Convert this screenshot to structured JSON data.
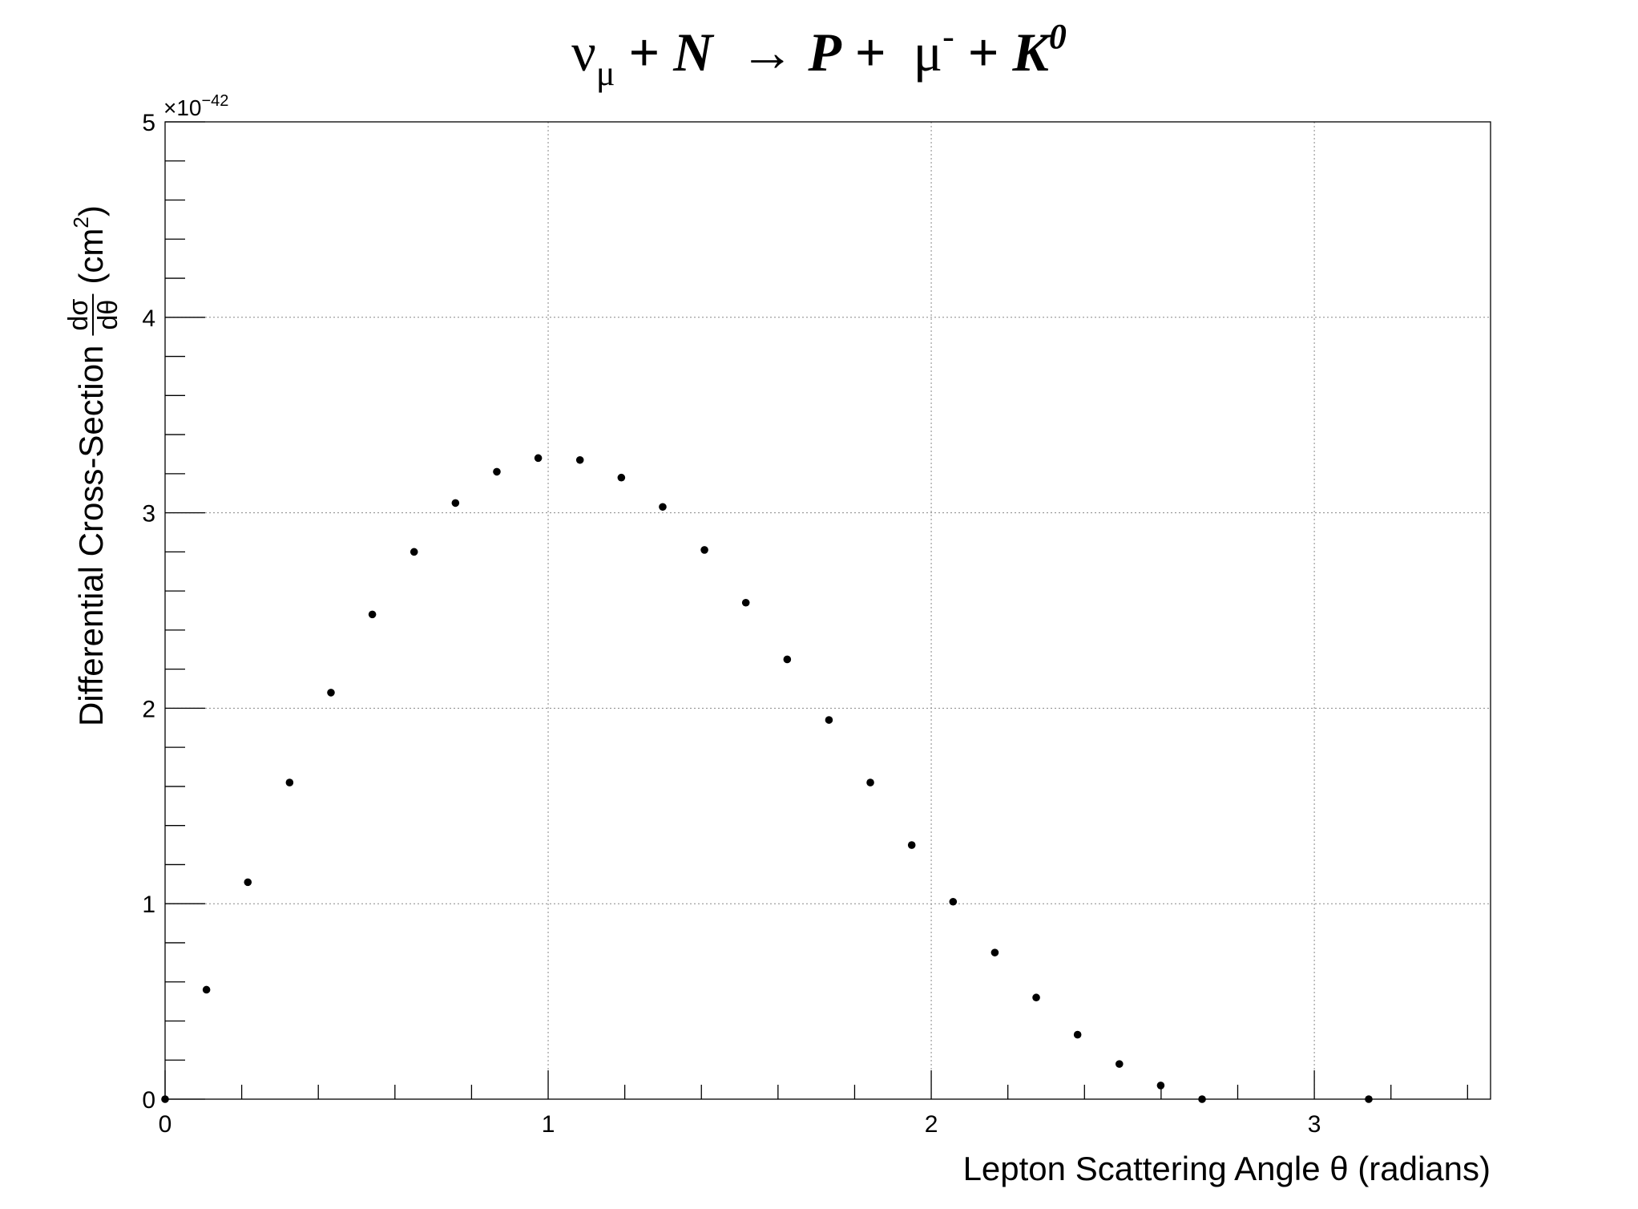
{
  "chart_data": {
    "type": "scatter",
    "title": {
      "parts": [
        {
          "text": "ν",
          "style": "normal"
        },
        {
          "text": "μ",
          "style": "sub"
        },
        {
          "text": " + ",
          "style": "bold"
        },
        {
          "text": "N",
          "style": "bolditalic"
        },
        {
          "text": "  → ",
          "style": "normal"
        },
        {
          "text": "P",
          "style": "bolditalic"
        },
        {
          "text": " +  ",
          "style": "bold"
        },
        {
          "text": "μ",
          "style": "normal"
        },
        {
          "text": "-",
          "style": "sup"
        },
        {
          "text": " + ",
          "style": "bold"
        },
        {
          "text": "K",
          "style": "bolditalic"
        },
        {
          "text": "0",
          "style": "supitalic"
        }
      ]
    },
    "xlabel": "Lepton Scattering Angle θ (radians)",
    "ylabel": {
      "prefix": "Differential Cross-Section",
      "frac_num": "dσ",
      "frac_den": "dθ",
      "unit_open": "(cm",
      "unit_exp": "2",
      "unit_close": ")"
    },
    "y_multiplier": {
      "base": "×10",
      "exponent": "−42"
    },
    "xlim": [
      0,
      3.46
    ],
    "ylim": [
      0,
      5
    ],
    "x_ticks": [
      0,
      1,
      2,
      3
    ],
    "y_ticks": [
      0,
      1,
      2,
      3,
      4,
      5
    ],
    "grid": true,
    "series": [
      {
        "marker": "dot",
        "color": "#000000",
        "points": [
          [
            0.0,
            0.0
          ],
          [
            0.108,
            0.56
          ],
          [
            0.216,
            1.11
          ],
          [
            0.325,
            1.62
          ],
          [
            0.433,
            2.08
          ],
          [
            0.541,
            2.48
          ],
          [
            0.65,
            2.8
          ],
          [
            0.758,
            3.05
          ],
          [
            0.866,
            3.21
          ],
          [
            0.974,
            3.28
          ],
          [
            1.083,
            3.27
          ],
          [
            1.191,
            3.18
          ],
          [
            1.299,
            3.03
          ],
          [
            1.408,
            2.81
          ],
          [
            1.516,
            2.54
          ],
          [
            1.624,
            2.25
          ],
          [
            1.733,
            1.94
          ],
          [
            1.841,
            1.62
          ],
          [
            1.949,
            1.3
          ],
          [
            2.057,
            1.01
          ],
          [
            2.166,
            0.75
          ],
          [
            2.274,
            0.52
          ],
          [
            2.382,
            0.33
          ],
          [
            2.491,
            0.18
          ],
          [
            2.599,
            0.07
          ],
          [
            2.707,
            0.0
          ],
          [
            3.142,
            0.0
          ]
        ]
      }
    ]
  }
}
